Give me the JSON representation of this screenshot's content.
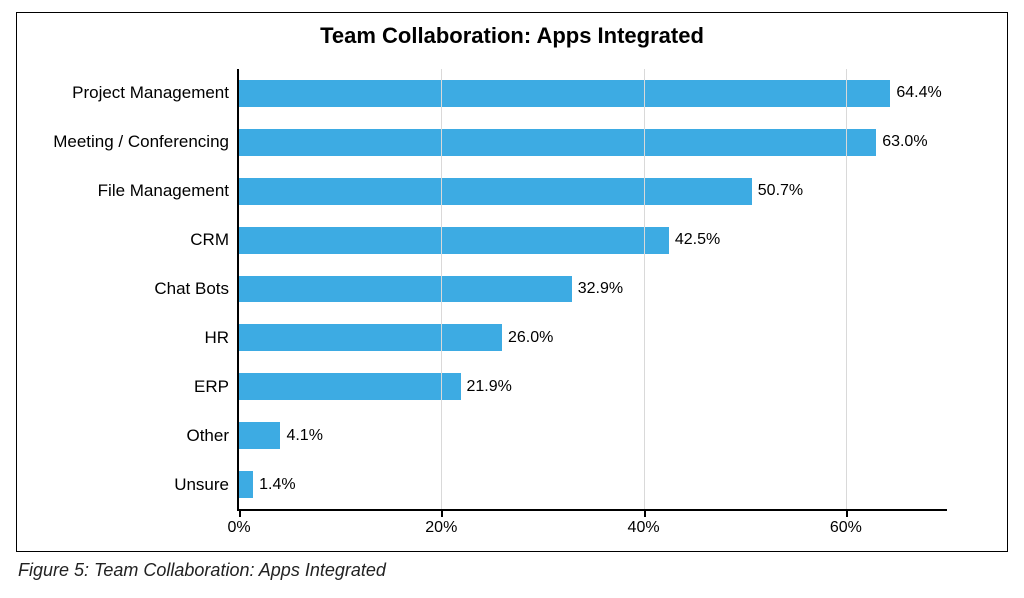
{
  "chart": {
    "type": "bar-horizontal",
    "title": "Team Collaboration: Apps Integrated",
    "title_fontsize": 22,
    "title_fontweight": "700",
    "bar_color": "#3dabe3",
    "background_color": "#ffffff",
    "grid_color": "#d9d9d9",
    "axis_color": "#000000",
    "border_color": "#000000",
    "label_fontsize": 17,
    "value_label_fontsize": 16,
    "tick_label_fontsize": 16,
    "x_axis": {
      "min": 0,
      "max": 70,
      "ticks": [
        0,
        20,
        40,
        60
      ],
      "tick_labels": [
        "0%",
        "20%",
        "40%",
        "60%"
      ]
    },
    "bar_fill_ratio": 0.55,
    "categories": [
      {
        "label": "Project Management",
        "value": 64.4,
        "display": "64.4%"
      },
      {
        "label": "Meeting / Conferencing",
        "value": 63.0,
        "display": "63.0%"
      },
      {
        "label": "File Management",
        "value": 50.7,
        "display": "50.7%"
      },
      {
        "label": "CRM",
        "value": 42.5,
        "display": "42.5%"
      },
      {
        "label": "Chat Bots",
        "value": 32.9,
        "display": "32.9%"
      },
      {
        "label": "HR",
        "value": 26.0,
        "display": "26.0%"
      },
      {
        "label": "ERP",
        "value": 21.9,
        "display": "21.9%"
      },
      {
        "label": "Other",
        "value": 4.1,
        "display": "4.1%"
      },
      {
        "label": "Unsure",
        "value": 1.4,
        "display": "1.4%"
      }
    ]
  },
  "caption": "Figure 5: Team Collaboration: Apps Integrated"
}
